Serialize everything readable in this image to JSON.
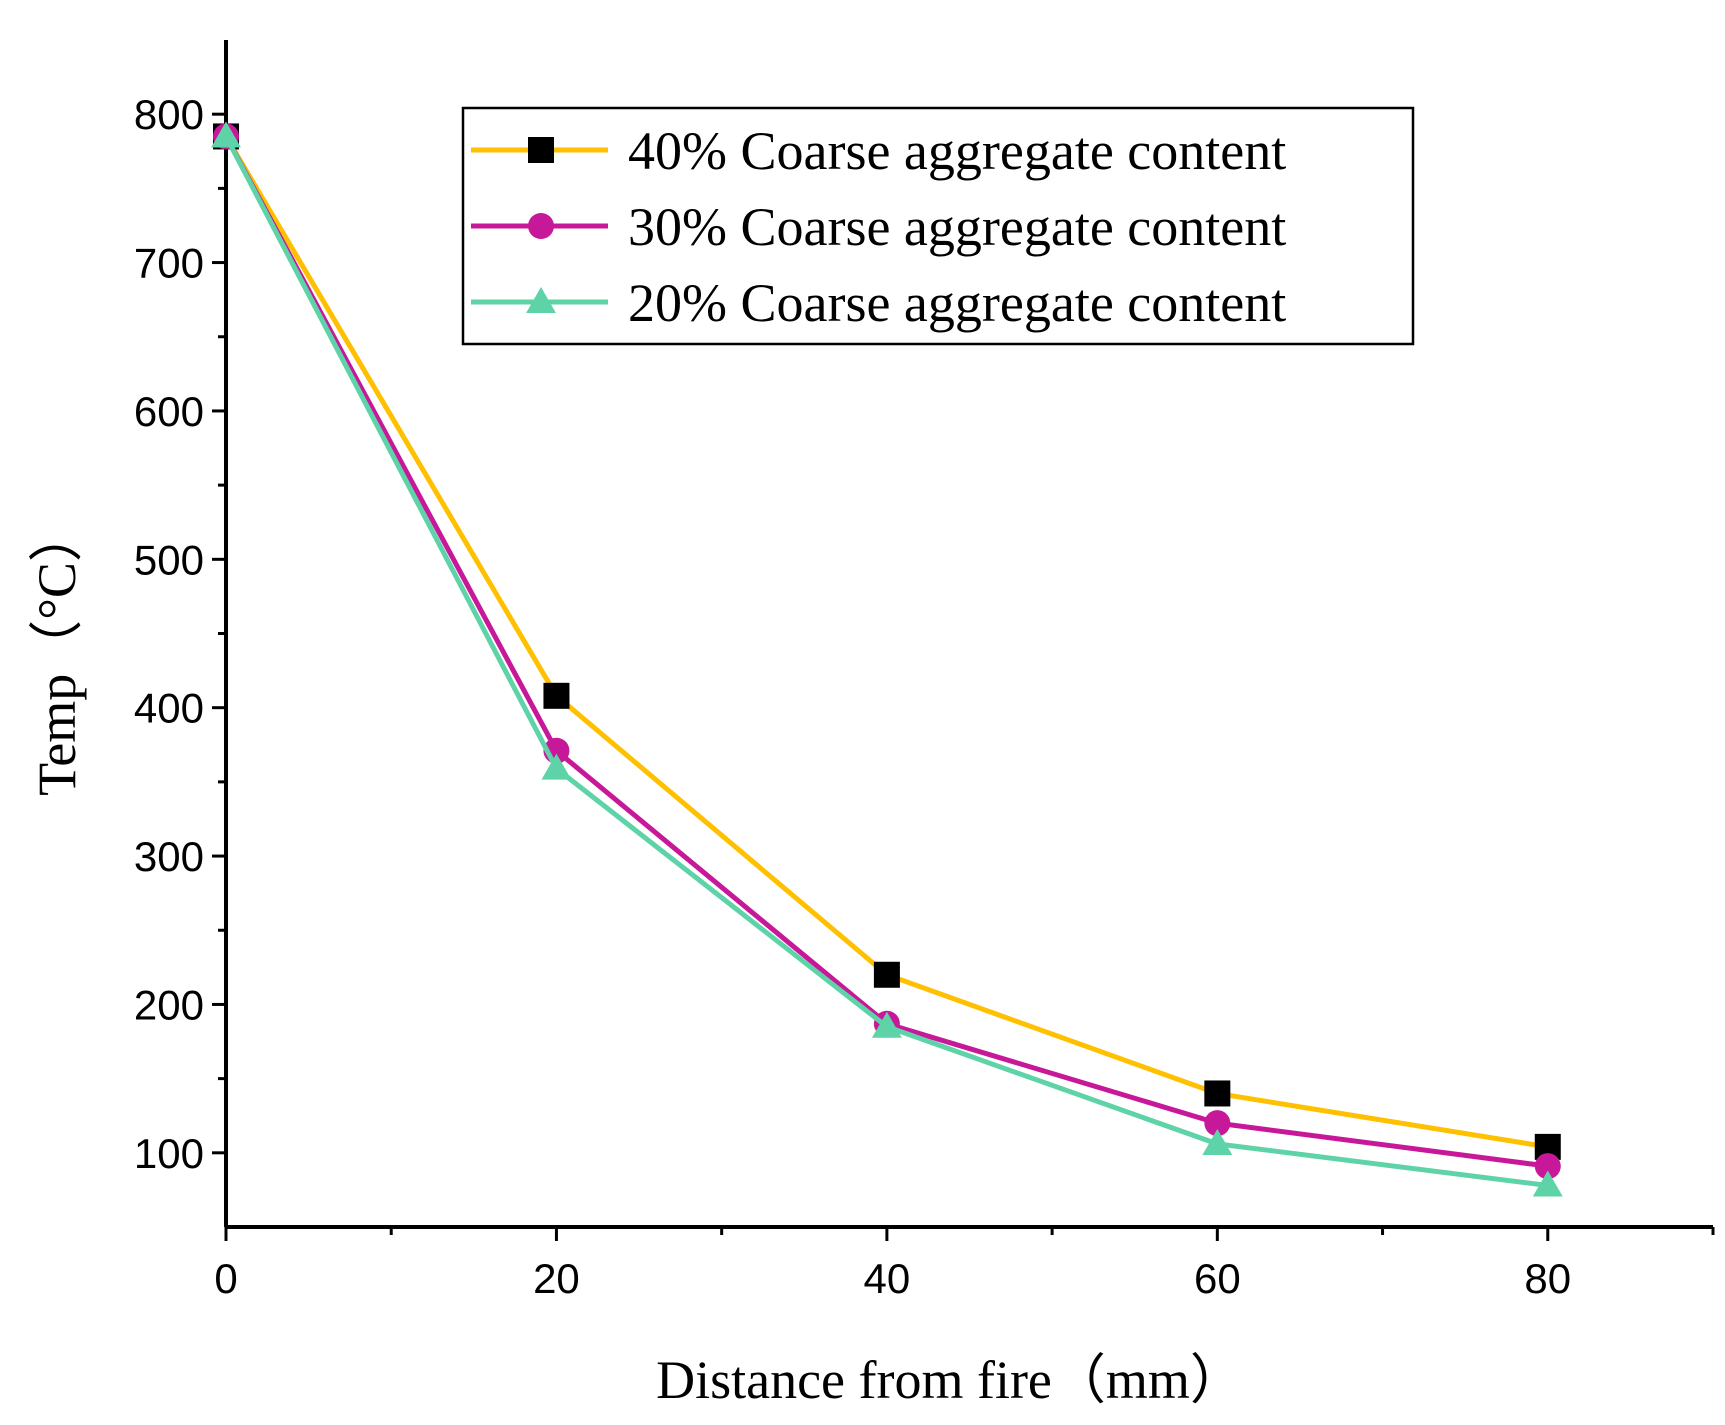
{
  "chart_data": {
    "type": "line",
    "title": "",
    "xlabel": "Distance from fire（mm）",
    "ylabel": "Temp（°C）",
    "xlim": [
      0,
      90
    ],
    "ylim": [
      50,
      850
    ],
    "xticks": [
      0,
      20,
      40,
      60,
      80
    ],
    "yticks": [
      100,
      200,
      300,
      400,
      500,
      600,
      700,
      800
    ],
    "x": [
      0,
      20,
      40,
      60,
      80
    ],
    "grid": false,
    "legend_position": "top-right",
    "series": [
      {
        "name": "40% Coarse aggregate content",
        "values": [
          785,
          408,
          220,
          140,
          104
        ],
        "color": "#FFC000",
        "marker": "square",
        "marker_color": "#000000"
      },
      {
        "name": "30% Coarse aggregate content",
        "values": [
          785,
          371,
          187,
          120,
          91
        ],
        "color": "#C8189A",
        "marker": "circle",
        "marker_color": "#C8189A"
      },
      {
        "name": "20% Coarse aggregate content",
        "values": [
          785,
          359,
          185,
          106,
          78
        ],
        "color": "#5FD3A8",
        "marker": "triangle",
        "marker_color": "#5FD3A8"
      }
    ]
  }
}
